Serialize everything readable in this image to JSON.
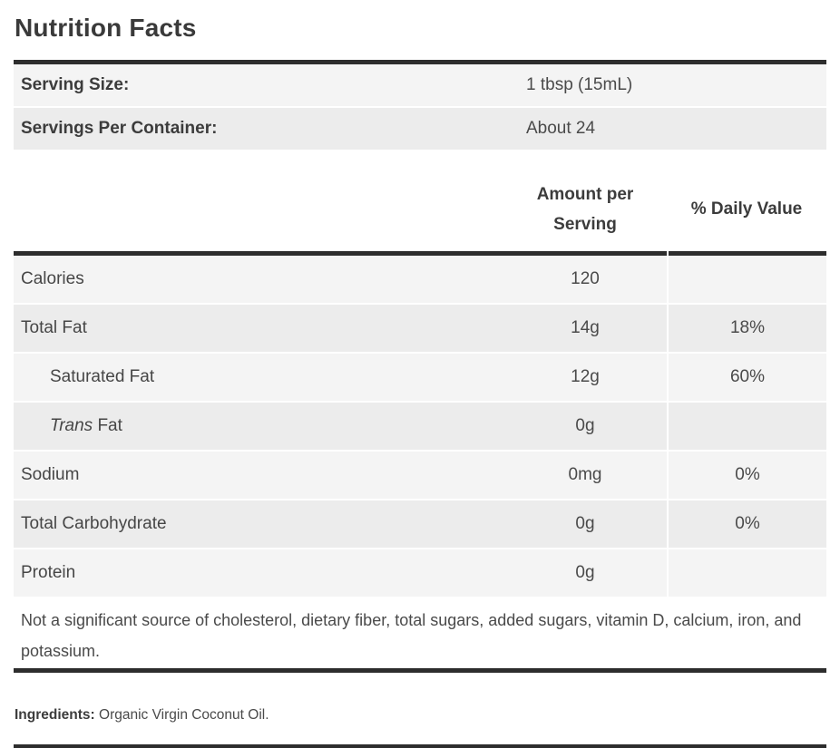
{
  "title": "Nutrition Facts",
  "serving_info": {
    "rows": [
      {
        "label": "Serving Size:",
        "value": "1 tbsp (15mL)"
      },
      {
        "label": "Servings Per Container:",
        "value": "About 24"
      }
    ]
  },
  "nutrients": {
    "header": {
      "amount_line1": "Amount per",
      "amount_line2": "Serving",
      "daily_value": "% Daily Value"
    },
    "rows": [
      {
        "label": "Calories",
        "amount": "120",
        "dv": ""
      },
      {
        "label": "Total Fat",
        "amount": "14g",
        "dv": "18%"
      },
      {
        "label": "Saturated Fat",
        "amount": "12g",
        "dv": "60%"
      },
      {
        "label_italic": "Trans",
        "label": " Fat",
        "amount": "0g",
        "dv": ""
      },
      {
        "label": "Sodium",
        "amount": "0mg",
        "dv": "0%"
      },
      {
        "label": "Total Carbohydrate",
        "amount": "0g",
        "dv": "0%"
      },
      {
        "label": "Protein",
        "amount": "0g",
        "dv": ""
      }
    ]
  },
  "footnote": "Not a significant source of cholesterol, dietary fiber, total sugars, added sugars, vitamin D, calcium, iron, and potassium.",
  "ingredients": {
    "label": "Ingredients:",
    "value": " Organic Virgin Coconut Oil."
  },
  "colors": {
    "divider_bar": "#2d2d2d",
    "row_shade_light": "#f4f4f4",
    "row_shade_dark": "#ececec",
    "text_primary": "#3c3c3c",
    "text_secondary": "#4a4a4a"
  }
}
